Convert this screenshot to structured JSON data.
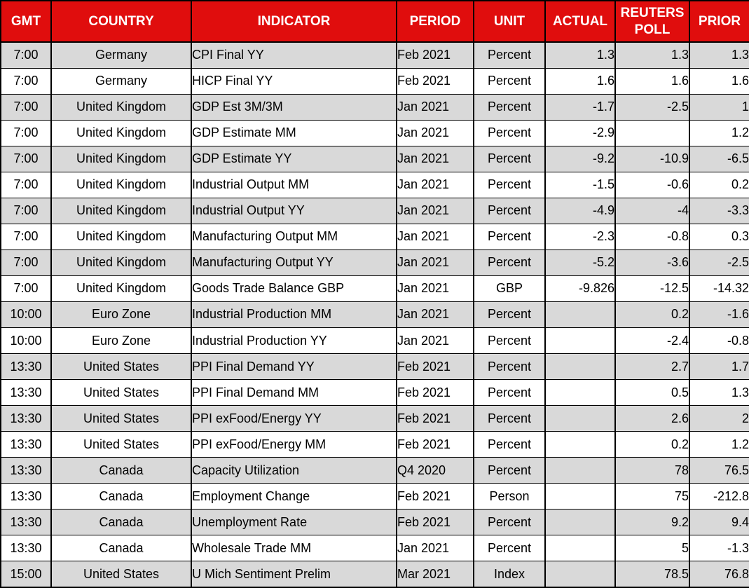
{
  "chart_data": {
    "type": "table",
    "columns": [
      "GMT",
      "COUNTRY",
      "INDICATOR",
      "PERIOD",
      "UNIT",
      "ACTUAL",
      "REUTERS POLL",
      "PRIOR"
    ],
    "rows": [
      [
        "7:00",
        "Germany",
        "CPI Final YY",
        "Feb 2021",
        "Percent",
        "1.3",
        "1.3",
        "1.3"
      ],
      [
        "7:00",
        "Germany",
        "HICP Final YY",
        "Feb 2021",
        "Percent",
        "1.6",
        "1.6",
        "1.6"
      ],
      [
        "7:00",
        "United Kingdom",
        "GDP Est 3M/3M",
        "Jan 2021",
        "Percent",
        "-1.7",
        "-2.5",
        "1"
      ],
      [
        "7:00",
        "United Kingdom",
        "GDP Estimate MM",
        "Jan 2021",
        "Percent",
        "-2.9",
        "",
        "1.2"
      ],
      [
        "7:00",
        "United Kingdom",
        "GDP Estimate YY",
        "Jan 2021",
        "Percent",
        "-9.2",
        "-10.9",
        "-6.5"
      ],
      [
        "7:00",
        "United Kingdom",
        "Industrial Output MM",
        "Jan 2021",
        "Percent",
        "-1.5",
        "-0.6",
        "0.2"
      ],
      [
        "7:00",
        "United Kingdom",
        "Industrial Output YY",
        "Jan 2021",
        "Percent",
        "-4.9",
        "-4",
        "-3.3"
      ],
      [
        "7:00",
        "United Kingdom",
        "Manufacturing Output MM",
        "Jan 2021",
        "Percent",
        "-2.3",
        "-0.8",
        "0.3"
      ],
      [
        "7:00",
        "United Kingdom",
        "Manufacturing Output YY",
        "Jan 2021",
        "Percent",
        "-5.2",
        "-3.6",
        "-2.5"
      ],
      [
        "7:00",
        "United Kingdom",
        "Goods Trade Balance GBP",
        "Jan 2021",
        "GBP",
        "-9.826",
        "-12.5",
        "-14.32"
      ],
      [
        "10:00",
        "Euro Zone",
        "Industrial Production MM",
        "Jan 2021",
        "Percent",
        "",
        "0.2",
        "-1.6"
      ],
      [
        "10:00",
        "Euro Zone",
        "Industrial Production YY",
        "Jan 2021",
        "Percent",
        "",
        "-2.4",
        "-0.8"
      ],
      [
        "13:30",
        "United States",
        "PPI Final Demand YY",
        "Feb 2021",
        "Percent",
        "",
        "2.7",
        "1.7"
      ],
      [
        "13:30",
        "United States",
        "PPI Final Demand MM",
        "Feb 2021",
        "Percent",
        "",
        "0.5",
        "1.3"
      ],
      [
        "13:30",
        "United States",
        "PPI exFood/Energy YY",
        "Feb 2021",
        "Percent",
        "",
        "2.6",
        "2"
      ],
      [
        "13:30",
        "United States",
        "PPI exFood/Energy MM",
        "Feb 2021",
        "Percent",
        "",
        "0.2",
        "1.2"
      ],
      [
        "13:30",
        "Canada",
        "Capacity Utilization",
        "Q4 2020",
        "Percent",
        "",
        "78",
        "76.5"
      ],
      [
        "13:30",
        "Canada",
        "Employment Change",
        "Feb 2021",
        "Person",
        "",
        "75",
        "-212.8"
      ],
      [
        "13:30",
        "Canada",
        "Unemployment Rate",
        "Feb 2021",
        "Percent",
        "",
        "9.2",
        "9.4"
      ],
      [
        "13:30",
        "Canada",
        "Wholesale Trade MM",
        "Jan 2021",
        "Percent",
        "",
        "5",
        "-1.3"
      ],
      [
        "15:00",
        "United States",
        "U Mich Sentiment Prelim",
        "Mar 2021",
        "Index",
        "",
        "78.5",
        "76.8"
      ]
    ],
    "layout_hints": {
      "first_data_row_shaded": true,
      "shading_alternates": true
    },
    "colors": {
      "header_background": "#e00d0d",
      "header_text": "#ffffff",
      "row_background": "#ffffff",
      "row_alt_background": "#d9d9d9",
      "body_text": "#000000",
      "border": "#000000"
    }
  }
}
